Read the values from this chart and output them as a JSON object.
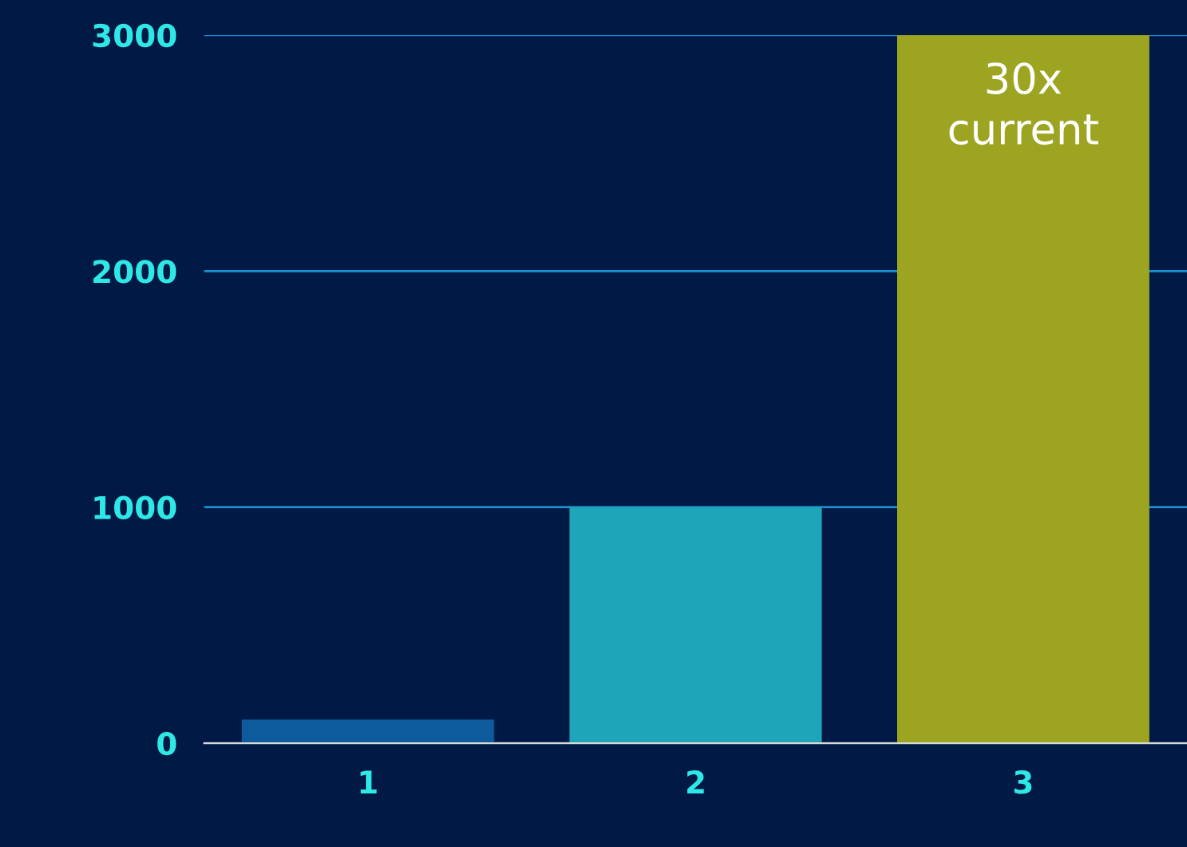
{
  "chart_data": {
    "type": "bar",
    "categories": [
      "1",
      "2",
      "3"
    ],
    "values": [
      100,
      1000,
      3000
    ],
    "colors": [
      "#0d5a9c",
      "#1fa5b9",
      "#9ca421"
    ],
    "ylim": [
      0,
      3000
    ],
    "yticks": [
      0,
      1000,
      2000,
      3000
    ],
    "grid": "y",
    "annotations": [
      {
        "text": "30x\ncurrent",
        "x": "3",
        "y": 3000
      }
    ]
  }
}
